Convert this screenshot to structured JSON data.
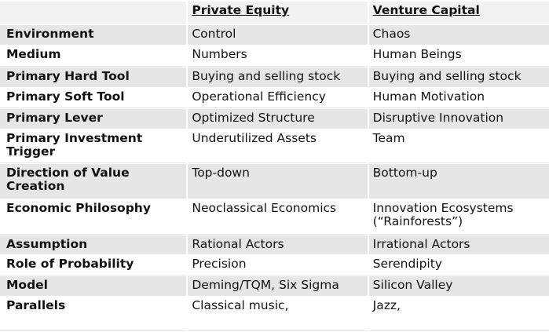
{
  "table": {
    "headers": [
      "Private Equity",
      "Venture Capital"
    ],
    "rows": [
      {
        "label": "Environment",
        "values": [
          "Control",
          "Chaos"
        ]
      },
      {
        "label": "Medium",
        "values": [
          "Numbers",
          "Human Beings"
        ]
      },
      {
        "label": "Primary Hard Tool",
        "values": [
          "Buying and selling stock",
          "Buying and selling stock"
        ]
      },
      {
        "label": "Primary Soft Tool",
        "values": [
          "Operational Efficiency",
          "Human Motivation"
        ]
      },
      {
        "label": "Primary Lever",
        "values": [
          "Optimized Structure",
          "Disruptive Innovation"
        ]
      },
      {
        "label": "Primary Investment Trigger",
        "values": [
          "Underutilized Assets",
          "Team"
        ]
      },
      {
        "label": "Direction of Value Creation",
        "values": [
          "Top-down",
          "Bottom-up"
        ]
      },
      {
        "label": "Economic Philosophy",
        "values": [
          "Neoclassical Economics",
          "Innovation Ecosystems (“Rainforests”)"
        ]
      },
      {
        "label": "Assumption",
        "values": [
          "Rational Actors",
          "Irrational Actors"
        ]
      },
      {
        "label": "Role of Probability",
        "values": [
          "Precision",
          "Serendipity"
        ]
      },
      {
        "label": "Model",
        "values": [
          "Deming/TQM, Six Sigma",
          "Silicon Valley"
        ]
      },
      {
        "label": "Parallels",
        "values": [
          "Classical music,",
          "Jazz,"
        ]
      }
    ]
  }
}
